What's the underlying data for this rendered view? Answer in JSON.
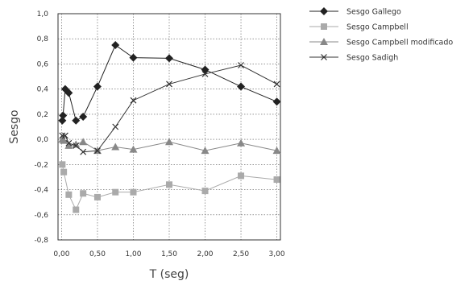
{
  "chart_data": {
    "type": "line",
    "title": "",
    "xlabel": "T (seg)",
    "ylabel": "Sesgo",
    "xlim": [
      -0.05,
      3.05
    ],
    "ylim": [
      -0.8,
      1.0
    ],
    "x_ticks": [
      0,
      0.5,
      1.0,
      1.5,
      2.0,
      2.5,
      3.0
    ],
    "x_tick_labels": [
      "0,00",
      "0,50",
      "1,00",
      "1,50",
      "2,00",
      "2,50",
      "3,00"
    ],
    "y_ticks": [
      1.0,
      0.8,
      0.6,
      0.4,
      0.2,
      0.0,
      -0.2,
      -0.4,
      -0.6,
      -0.8
    ],
    "y_tick_labels": [
      "1,0",
      "0,8",
      "0,6",
      "0,4",
      "0,2",
      "0,0",
      "-0,2",
      "-0,4",
      "-0,6",
      "-0,8"
    ],
    "grid": true,
    "legend_position": "right",
    "series": [
      {
        "name": "Sesgo Gallego",
        "color": "#222222",
        "marker": "diamond",
        "x": [
          0.01,
          0.02,
          0.05,
          0.1,
          0.2,
          0.3,
          0.5,
          0.75,
          1.0,
          1.5,
          2.0,
          2.5,
          3.0
        ],
        "y": [
          0.15,
          0.19,
          0.4,
          0.37,
          0.15,
          0.18,
          0.42,
          0.75,
          0.65,
          0.645,
          0.555,
          0.42,
          0.3
        ]
      },
      {
        "name": "Sesgo Campbell",
        "color": "#aaaaaa",
        "marker": "square",
        "x": [
          0.01,
          0.03,
          0.1,
          0.2,
          0.3,
          0.5,
          0.75,
          1.0,
          1.5,
          2.0,
          2.5,
          3.0
        ],
        "y": [
          -0.2,
          -0.26,
          -0.44,
          -0.56,
          -0.43,
          -0.46,
          -0.42,
          -0.42,
          -0.36,
          -0.41,
          -0.29,
          -0.32
        ]
      },
      {
        "name": "Sesgo Campbell modificado",
        "color": "#888888",
        "marker": "triangle",
        "x": [
          0.01,
          0.03,
          0.1,
          0.2,
          0.3,
          0.5,
          0.75,
          1.0,
          1.5,
          2.0,
          2.5,
          3.0
        ],
        "y": [
          0.0,
          -0.01,
          -0.05,
          -0.04,
          -0.02,
          -0.09,
          -0.06,
          -0.08,
          -0.02,
          -0.09,
          -0.03,
          -0.09
        ]
      },
      {
        "name": "Sesgo Sadigh",
        "color": "#333333",
        "marker": "x",
        "x": [
          0.01,
          0.05,
          0.1,
          0.2,
          0.3,
          0.5,
          0.75,
          1.0,
          1.5,
          2.0,
          2.5,
          3.0
        ],
        "y": [
          0.03,
          0.03,
          -0.03,
          -0.05,
          -0.1,
          -0.09,
          0.1,
          0.31,
          0.44,
          0.52,
          0.59,
          0.44
        ]
      }
    ]
  }
}
